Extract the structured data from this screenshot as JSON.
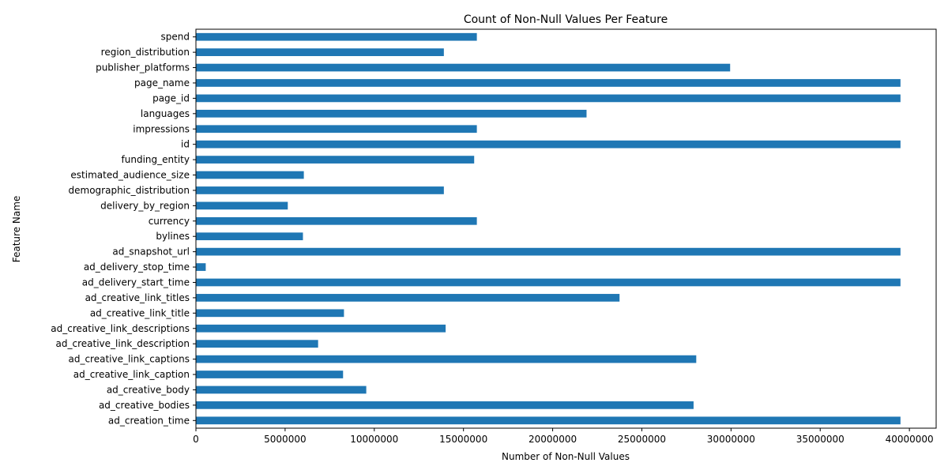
{
  "chart_data": {
    "type": "bar",
    "orientation": "horizontal",
    "title": "Count of Non-Null Values Per Feature",
    "xlabel": "Number of Non-Null Values",
    "ylabel": "Feature Name",
    "xlim": [
      0,
      41500000
    ],
    "xticks": [
      0,
      5000000,
      10000000,
      15000000,
      20000000,
      25000000,
      30000000,
      35000000,
      40000000
    ],
    "xtick_labels": [
      "0",
      "5000000",
      "10000000",
      "15000000",
      "20000000",
      "25000000",
      "30000000",
      "35000000",
      "40000000"
    ],
    "grid": false,
    "bar_color": "#1f77b4",
    "categories": [
      "spend",
      "region_distribution",
      "publisher_platforms",
      "page_name",
      "page_id",
      "languages",
      "impressions",
      "id",
      "funding_entity",
      "estimated_audience_size",
      "demographic_distribution",
      "delivery_by_region",
      "currency",
      "bylines",
      "ad_snapshot_url",
      "ad_delivery_stop_time",
      "ad_delivery_start_time",
      "ad_creative_link_titles",
      "ad_creative_link_title",
      "ad_creative_link_descriptions",
      "ad_creative_link_description",
      "ad_creative_link_captions",
      "ad_creative_link_caption",
      "ad_creative_body",
      "ad_creative_bodies",
      "ad_creation_time"
    ],
    "values": [
      15750000,
      13900000,
      29950000,
      39500000,
      39500000,
      21900000,
      15750000,
      39500000,
      15600000,
      6050000,
      13900000,
      5150000,
      15750000,
      6000000,
      39500000,
      550000,
      39500000,
      23750000,
      8300000,
      14000000,
      6850000,
      28050000,
      8250000,
      9550000,
      27900000,
      39500000
    ]
  }
}
